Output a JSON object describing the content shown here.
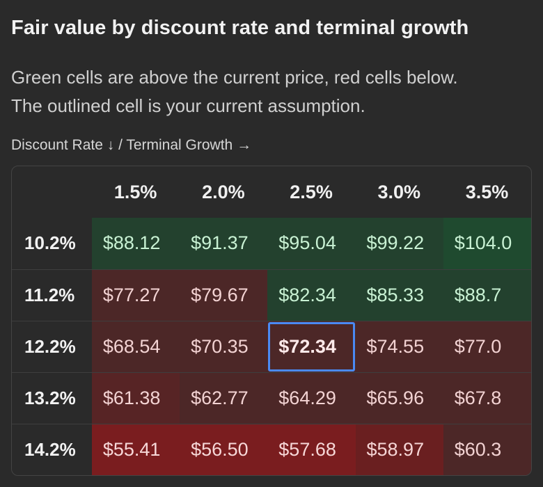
{
  "title": "Fair value by discount rate and terminal growth",
  "subtitle_line1": "Green cells are above the current price, red cells below.",
  "subtitle_line2": "The outlined cell is your current assumption.",
  "axis_label": "Discount Rate ↓ / Terminal Growth →",
  "colors": {
    "above_price": "#1f4a2f",
    "below_price": "#7a1d1f",
    "current_outline": "#4a8af4"
  },
  "columns": [
    "1.5%",
    "2.0%",
    "2.5%",
    "3.0%",
    "3.5%"
  ],
  "rows": [
    {
      "rate": "10.2%",
      "values": [
        "$88.12",
        "$91.37",
        "$95.04",
        "$99.22",
        "$104.0"
      ],
      "tones": [
        "g1",
        "g1",
        "g1",
        "g1",
        "g2"
      ]
    },
    {
      "rate": "11.2%",
      "values": [
        "$77.27",
        "$79.67",
        "$82.34",
        "$85.33",
        "$88.7"
      ],
      "tones": [
        "r1",
        "r1",
        "g1",
        "g1",
        "g1"
      ]
    },
    {
      "rate": "12.2%",
      "values": [
        "$68.54",
        "$70.35",
        "$72.34",
        "$74.55",
        "$77.0"
      ],
      "tones": [
        "r1",
        "r1",
        "r1",
        "r1",
        "r1"
      ]
    },
    {
      "rate": "13.2%",
      "values": [
        "$61.38",
        "$62.77",
        "$64.29",
        "$65.96",
        "$67.8"
      ],
      "tones": [
        "r2",
        "r1",
        "r1",
        "r1",
        "r1"
      ]
    },
    {
      "rate": "14.2%",
      "values": [
        "$55.41",
        "$56.50",
        "$57.68",
        "$58.97",
        "$60.3"
      ],
      "tones": [
        "r4",
        "r4",
        "r4",
        "r3",
        "r1"
      ]
    }
  ],
  "current_assumption": {
    "row": 2,
    "col": 2
  }
}
